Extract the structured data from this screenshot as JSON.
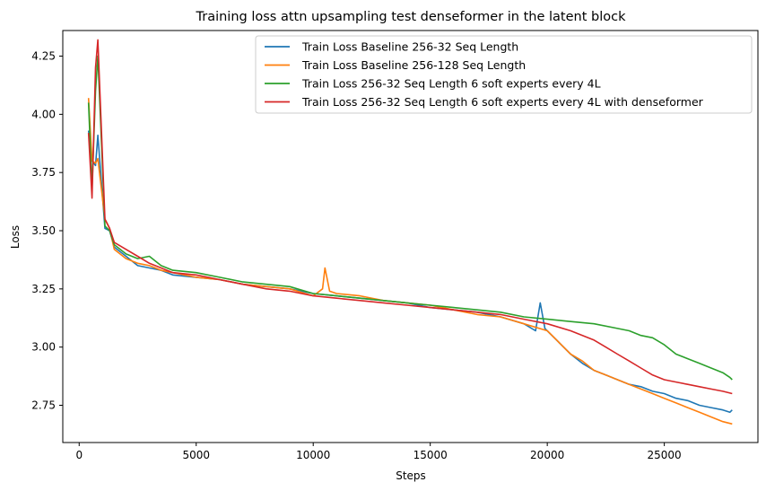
{
  "chart_data": {
    "type": "line",
    "title": "Training loss attn upsampling test denseformer in the latent block",
    "xlabel": "Steps",
    "ylabel": "Loss",
    "xlim": [
      -700,
      29000
    ],
    "ylim": [
      2.59,
      4.36
    ],
    "xticks": [
      0,
      5000,
      10000,
      15000,
      20000,
      25000
    ],
    "yticks": [
      2.75,
      3.0,
      3.25,
      3.5,
      3.75,
      4.0,
      4.25
    ],
    "xtick_labels": [
      "0",
      "5000",
      "10000",
      "15000",
      "20000",
      "25000"
    ],
    "ytick_labels": [
      "2.75",
      "3.00",
      "3.25",
      "3.50",
      "3.75",
      "4.00",
      "4.25"
    ],
    "grid": false,
    "legend_position": "top-right",
    "series": [
      {
        "name": "Train Loss Baseline 256-32 Seq Length",
        "color": "#1f77b4",
        "points": [
          [
            400,
            3.93
          ],
          [
            550,
            3.8
          ],
          [
            700,
            3.78
          ],
          [
            800,
            3.91
          ],
          [
            1100,
            3.51
          ],
          [
            1300,
            3.5
          ],
          [
            1500,
            3.43
          ],
          [
            2000,
            3.39
          ],
          [
            2500,
            3.35
          ],
          [
            3000,
            3.34
          ],
          [
            3500,
            3.33
          ],
          [
            4000,
            3.31
          ],
          [
            5000,
            3.3
          ],
          [
            6000,
            3.29
          ],
          [
            7000,
            3.27
          ],
          [
            8000,
            3.26
          ],
          [
            9000,
            3.25
          ],
          [
            10000,
            3.23
          ],
          [
            11000,
            3.22
          ],
          [
            12000,
            3.21
          ],
          [
            13000,
            3.2
          ],
          [
            14000,
            3.19
          ],
          [
            15000,
            3.17
          ],
          [
            16000,
            3.16
          ],
          [
            17000,
            3.15
          ],
          [
            18000,
            3.13
          ],
          [
            19000,
            3.1
          ],
          [
            19500,
            3.07
          ],
          [
            19700,
            3.19
          ],
          [
            19900,
            3.08
          ],
          [
            20500,
            3.02
          ],
          [
            21000,
            2.97
          ],
          [
            21500,
            2.93
          ],
          [
            22000,
            2.9
          ],
          [
            22500,
            2.88
          ],
          [
            23000,
            2.86
          ],
          [
            23500,
            2.84
          ],
          [
            24000,
            2.83
          ],
          [
            24500,
            2.81
          ],
          [
            25000,
            2.8
          ],
          [
            25500,
            2.78
          ],
          [
            26000,
            2.77
          ],
          [
            26500,
            2.75
          ],
          [
            27000,
            2.74
          ],
          [
            27500,
            2.73
          ],
          [
            27800,
            2.72
          ],
          [
            27900,
            2.73
          ]
        ]
      },
      {
        "name": "Train Loss Baseline 256-128 Seq Length",
        "color": "#ff7f0e",
        "points": [
          [
            400,
            4.07
          ],
          [
            550,
            3.8
          ],
          [
            700,
            3.79
          ],
          [
            800,
            3.81
          ],
          [
            1100,
            3.55
          ],
          [
            1300,
            3.51
          ],
          [
            1500,
            3.42
          ],
          [
            2000,
            3.38
          ],
          [
            2500,
            3.36
          ],
          [
            3000,
            3.35
          ],
          [
            3500,
            3.33
          ],
          [
            4000,
            3.32
          ],
          [
            5000,
            3.3
          ],
          [
            6000,
            3.29
          ],
          [
            7000,
            3.27
          ],
          [
            8000,
            3.26
          ],
          [
            9000,
            3.25
          ],
          [
            10000,
            3.22
          ],
          [
            10400,
            3.25
          ],
          [
            10500,
            3.34
          ],
          [
            10700,
            3.24
          ],
          [
            11000,
            3.23
          ],
          [
            12000,
            3.22
          ],
          [
            13000,
            3.2
          ],
          [
            14000,
            3.19
          ],
          [
            15000,
            3.18
          ],
          [
            16000,
            3.16
          ],
          [
            17000,
            3.14
          ],
          [
            18000,
            3.13
          ],
          [
            19000,
            3.1
          ],
          [
            20000,
            3.07
          ],
          [
            20500,
            3.02
          ],
          [
            21000,
            2.97
          ],
          [
            21500,
            2.94
          ],
          [
            22000,
            2.9
          ],
          [
            22500,
            2.88
          ],
          [
            23000,
            2.86
          ],
          [
            23500,
            2.84
          ],
          [
            24000,
            2.82
          ],
          [
            24500,
            2.8
          ],
          [
            25000,
            2.78
          ],
          [
            25500,
            2.76
          ],
          [
            26000,
            2.74
          ],
          [
            26500,
            2.72
          ],
          [
            27000,
            2.7
          ],
          [
            27500,
            2.68
          ],
          [
            27900,
            2.67
          ]
        ]
      },
      {
        "name": "Train Loss 256-32 Seq Length 6 soft experts every 4L",
        "color": "#2ca02c",
        "points": [
          [
            400,
            4.05
          ],
          [
            550,
            3.68
          ],
          [
            700,
            4.1
          ],
          [
            800,
            4.25
          ],
          [
            1100,
            3.52
          ],
          [
            1300,
            3.5
          ],
          [
            1500,
            3.44
          ],
          [
            2000,
            3.4
          ],
          [
            2500,
            3.38
          ],
          [
            3000,
            3.39
          ],
          [
            3500,
            3.35
          ],
          [
            4000,
            3.33
          ],
          [
            5000,
            3.32
          ],
          [
            6000,
            3.3
          ],
          [
            7000,
            3.28
          ],
          [
            8000,
            3.27
          ],
          [
            9000,
            3.26
          ],
          [
            10000,
            3.23
          ],
          [
            11000,
            3.22
          ],
          [
            12000,
            3.21
          ],
          [
            13000,
            3.2
          ],
          [
            14000,
            3.19
          ],
          [
            15000,
            3.18
          ],
          [
            16000,
            3.17
          ],
          [
            17000,
            3.16
          ],
          [
            18000,
            3.15
          ],
          [
            19000,
            3.13
          ],
          [
            20000,
            3.12
          ],
          [
            21000,
            3.11
          ],
          [
            22000,
            3.1
          ],
          [
            23000,
            3.08
          ],
          [
            23500,
            3.07
          ],
          [
            24000,
            3.05
          ],
          [
            24500,
            3.04
          ],
          [
            25000,
            3.01
          ],
          [
            25500,
            2.97
          ],
          [
            26000,
            2.95
          ],
          [
            26500,
            2.93
          ],
          [
            27000,
            2.91
          ],
          [
            27500,
            2.89
          ],
          [
            27800,
            2.87
          ],
          [
            27900,
            2.86
          ]
        ]
      },
      {
        "name": "Train Loss 256-32 Seq Length 6 soft experts every 4L with denseformer",
        "color": "#d62728",
        "points": [
          [
            400,
            3.92
          ],
          [
            550,
            3.64
          ],
          [
            700,
            4.2
          ],
          [
            800,
            4.32
          ],
          [
            1100,
            3.55
          ],
          [
            1300,
            3.51
          ],
          [
            1500,
            3.45
          ],
          [
            2000,
            3.42
          ],
          [
            2500,
            3.39
          ],
          [
            3000,
            3.36
          ],
          [
            3500,
            3.34
          ],
          [
            4000,
            3.32
          ],
          [
            5000,
            3.31
          ],
          [
            6000,
            3.29
          ],
          [
            7000,
            3.27
          ],
          [
            8000,
            3.25
          ],
          [
            9000,
            3.24
          ],
          [
            10000,
            3.22
          ],
          [
            11000,
            3.21
          ],
          [
            12000,
            3.2
          ],
          [
            13000,
            3.19
          ],
          [
            14000,
            3.18
          ],
          [
            15000,
            3.17
          ],
          [
            16000,
            3.16
          ],
          [
            17000,
            3.15
          ],
          [
            18000,
            3.14
          ],
          [
            19000,
            3.12
          ],
          [
            20000,
            3.1
          ],
          [
            21000,
            3.07
          ],
          [
            22000,
            3.03
          ],
          [
            22500,
            3.0
          ],
          [
            23000,
            2.97
          ],
          [
            23500,
            2.94
          ],
          [
            24000,
            2.91
          ],
          [
            24500,
            2.88
          ],
          [
            25000,
            2.86
          ],
          [
            25500,
            2.85
          ],
          [
            26000,
            2.84
          ],
          [
            26500,
            2.83
          ],
          [
            27000,
            2.82
          ],
          [
            27500,
            2.81
          ],
          [
            27900,
            2.8
          ]
        ]
      }
    ]
  }
}
